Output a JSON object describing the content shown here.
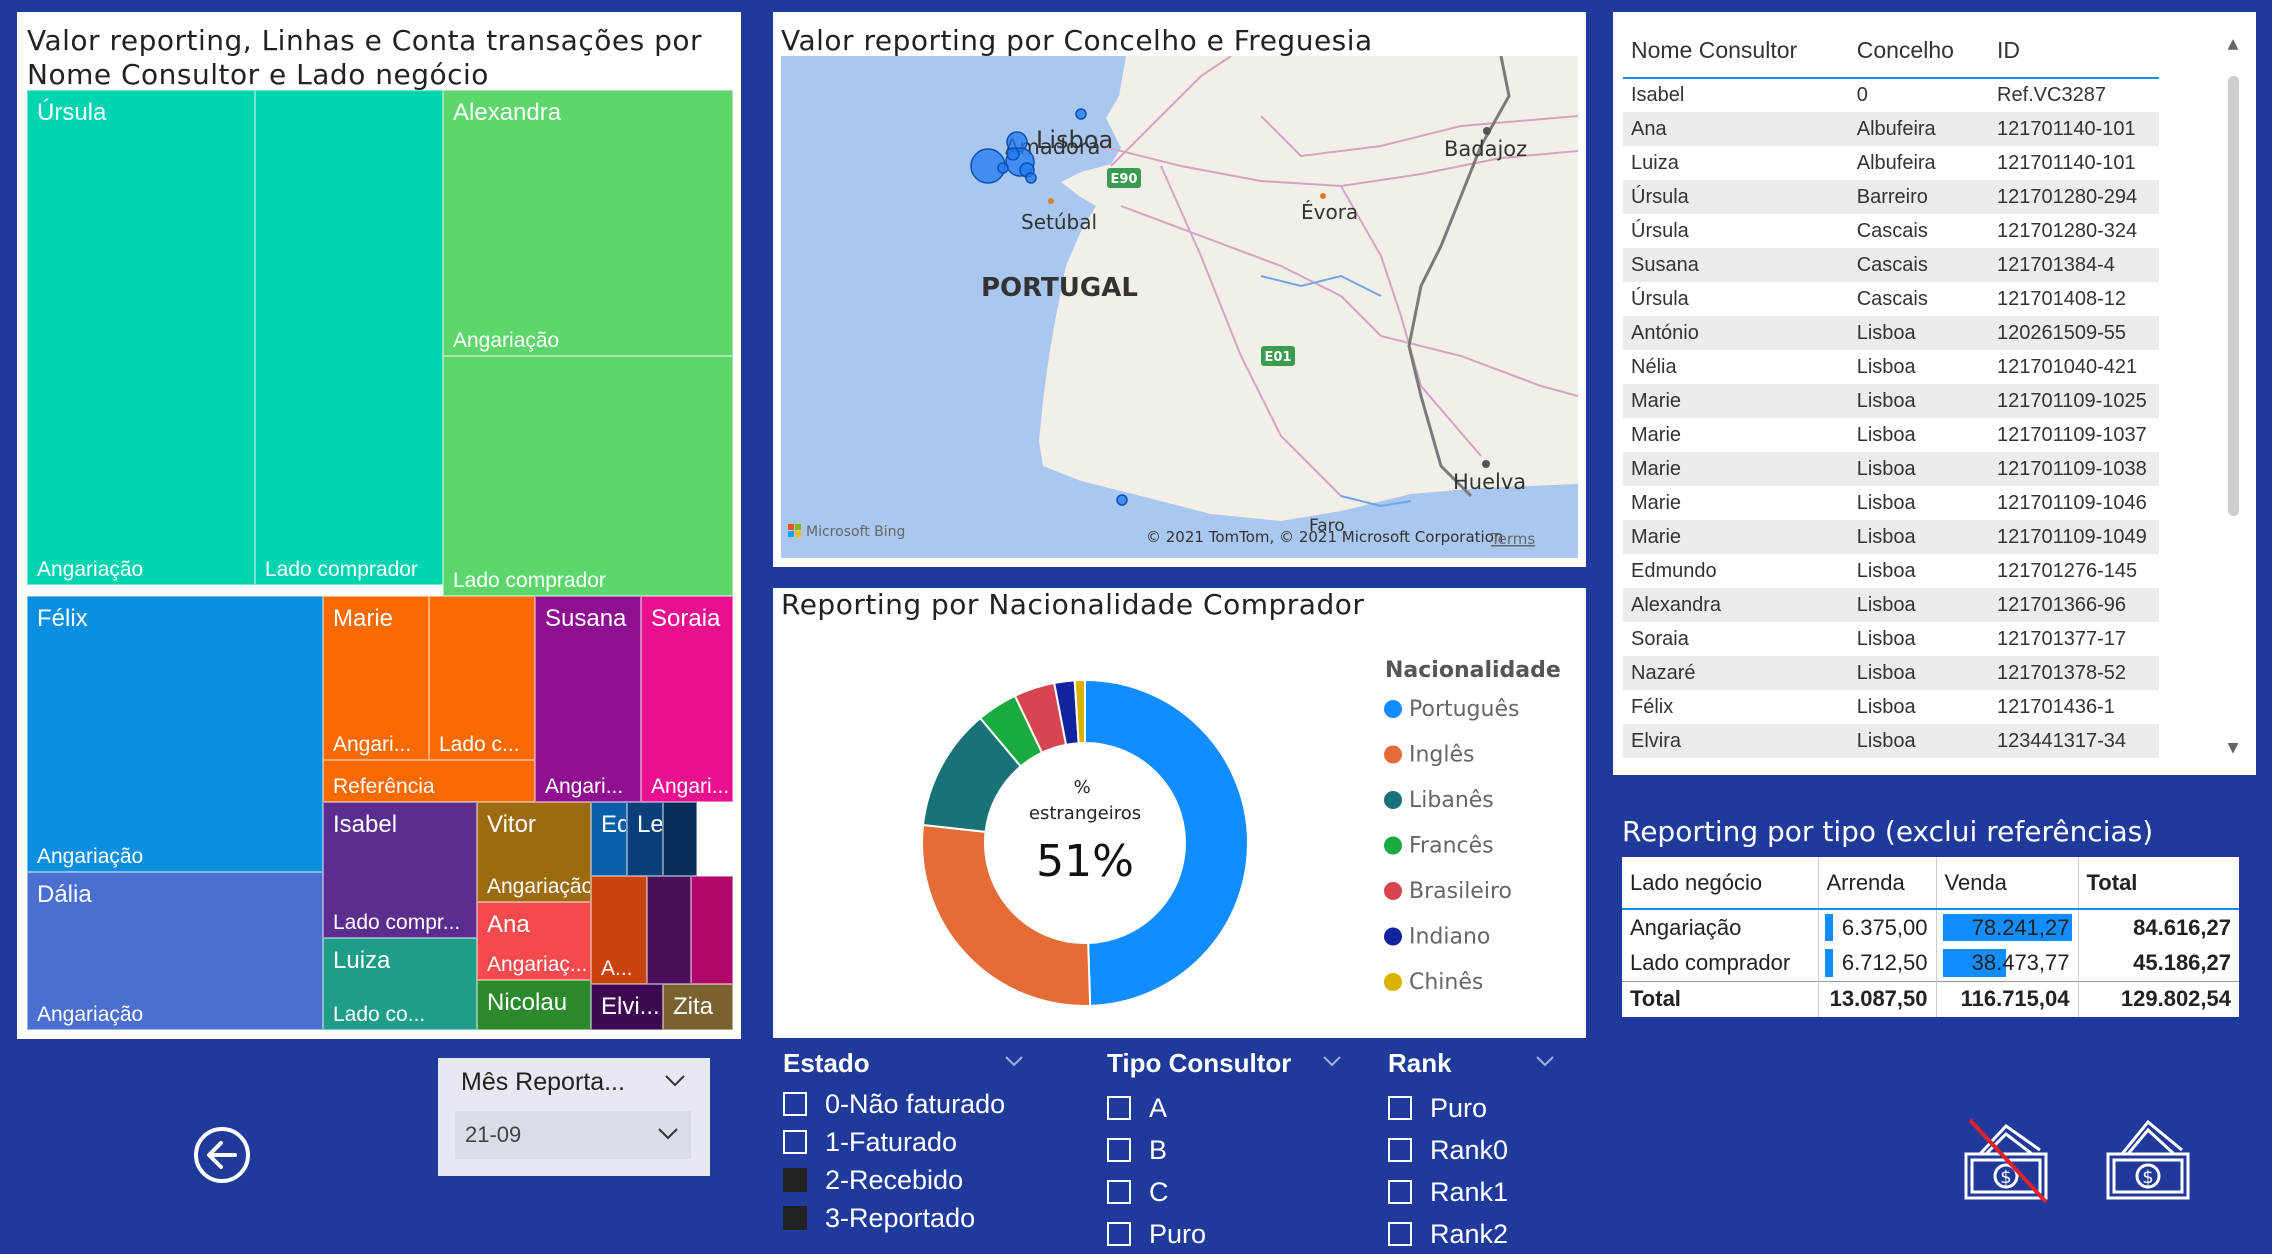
{
  "treemap": {
    "title_line1": "Valor reporting, Linhas e Conta transações por",
    "title_line2": "Nome Consultor e Lado negócio",
    "tiles": [
      {
        "name": "Úrsula",
        "label": "Angariação",
        "color": "#00d5b2"
      },
      {
        "name": "",
        "label": "Lado comprador",
        "color": "#00d5b2"
      },
      {
        "name": "Alexandra",
        "label": "Angariação",
        "color": "#5dd66b"
      },
      {
        "name": "",
        "label": "Lado comprador",
        "color": "#5dd66b"
      },
      {
        "name": "Félix",
        "label": "Angariação",
        "color": "#0a8fe0"
      },
      {
        "name": "Dália",
        "label": "Angariação",
        "color": "#4a6fd0"
      },
      {
        "name": "Marie",
        "label": "Angari...",
        "color": "#fa6a00"
      },
      {
        "name": "",
        "label": "Lado c...",
        "color": "#fa6a00"
      },
      {
        "name": "",
        "label": "Referência",
        "color": "#fa6a00"
      },
      {
        "name": "Susana",
        "label": "Angari...",
        "color": "#8e0f8f"
      },
      {
        "name": "Soraia",
        "label": "Angari...",
        "color": "#ea0f8f"
      },
      {
        "name": "Isabel",
        "label": "Lado compr...",
        "color": "#5b2d8e"
      },
      {
        "name": "Vitor",
        "label": "Angariação",
        "color": "#9c6b10"
      },
      {
        "name": "Ana",
        "label": "Angariaç...",
        "color": "#f44a4e"
      },
      {
        "name": "Luiza",
        "label": "Lado co...",
        "color": "#1f9d88"
      },
      {
        "name": "Nicolau",
        "label": "",
        "color": "#2c8a2c"
      },
      {
        "name": "Ed...",
        "label": "",
        "color": "#0a5fab"
      },
      {
        "name": "Le...",
        "label": "",
        "color": "#0a3f7a"
      },
      {
        "name": "",
        "label": "",
        "color": "#062c59"
      },
      {
        "name": "",
        "label": "A...",
        "color": "#c8440c"
      },
      {
        "name": "",
        "label": "",
        "color": "#4a0f5a"
      },
      {
        "name": "",
        "label": "",
        "color": "#b0086a"
      },
      {
        "name": "Elvi...",
        "label": "",
        "color": "#3d0a52"
      },
      {
        "name": "Zita",
        "label": "",
        "color": "#7a6230"
      }
    ]
  },
  "map": {
    "title": "Valor reporting por Concelho e Freguesia",
    "labels": {
      "amadora": "Amadora",
      "lisboa": "Lisboa",
      "setubal": "Setúbal",
      "evora": "Évora",
      "badajoz": "Badajoz",
      "portugal": "PORTUGAL",
      "huelva": "Huelva",
      "faro": "Faro",
      "e90": "E90",
      "e01": "E01"
    },
    "bing": "Microsoft Bing",
    "copyright": "© 2021 TomTom, © 2021 Microsoft Corporation",
    "terms": "Terms"
  },
  "table": {
    "headers": [
      "Nome Consultor",
      "Concelho",
      "ID"
    ],
    "rows": [
      [
        "Isabel",
        "0",
        "Ref.VC3287"
      ],
      [
        "Ana",
        "Albufeira",
        "121701140-101"
      ],
      [
        "Luiza",
        "Albufeira",
        "121701140-101"
      ],
      [
        "Úrsula",
        "Barreiro",
        "121701280-294"
      ],
      [
        "Úrsula",
        "Cascais",
        "121701280-324"
      ],
      [
        "Susana",
        "Cascais",
        "121701384-4"
      ],
      [
        "Úrsula",
        "Cascais",
        "121701408-12"
      ],
      [
        "António",
        "Lisboa",
        "120261509-55"
      ],
      [
        "Nélia",
        "Lisboa",
        "121701040-421"
      ],
      [
        "Marie",
        "Lisboa",
        "121701109-1025"
      ],
      [
        "Marie",
        "Lisboa",
        "121701109-1037"
      ],
      [
        "Marie",
        "Lisboa",
        "121701109-1038"
      ],
      [
        "Marie",
        "Lisboa",
        "121701109-1046"
      ],
      [
        "Marie",
        "Lisboa",
        "121701109-1049"
      ],
      [
        "Edmundo",
        "Lisboa",
        "121701276-145"
      ],
      [
        "Alexandra",
        "Lisboa",
        "121701366-96"
      ],
      [
        "Soraia",
        "Lisboa",
        "121701377-17"
      ],
      [
        "Nazaré",
        "Lisboa",
        "121701378-52"
      ],
      [
        "Félix",
        "Lisboa",
        "121701436-1"
      ],
      [
        "Elvira",
        "Lisboa",
        "123441317-34"
      ]
    ]
  },
  "donut": {
    "title": "Reporting por Nacionalidade Comprador",
    "center_label": "% estrangeiros",
    "center_value": "51%",
    "legend_title": "Nacionalidade"
  },
  "chart_data": {
    "type": "pie",
    "title": "Reporting por Nacionalidade Comprador",
    "categories": [
      "Português",
      "Inglês",
      "Libanês",
      "Francês",
      "Brasileiro",
      "Indiano",
      "Chinês"
    ],
    "values": [
      49,
      27,
      12,
      4,
      4,
      2,
      1
    ],
    "colors": [
      "#118dff",
      "#e66c37",
      "#197278",
      "#1aab40",
      "#d64550",
      "#12239e",
      "#d9b300"
    ]
  },
  "matrix": {
    "title": "Reporting por tipo (exclui referências)",
    "headers": [
      "Lado negócio",
      "Arrenda",
      "Venda",
      "Total"
    ],
    "rows": [
      {
        "label": "Angariação",
        "arrenda": "6.375,00",
        "venda": "78.241,27",
        "total": "84.616,27",
        "arrenda_frac": 0.08,
        "venda_frac": 1.0
      },
      {
        "label": "Lado comprador",
        "arrenda": "6.712,50",
        "venda": "38.473,77",
        "total": "45.186,27",
        "arrenda_frac": 0.08,
        "venda_frac": 0.49
      }
    ],
    "total": {
      "label": "Total",
      "arrenda": "13.087,50",
      "venda": "116.715,04",
      "total": "129.802,54"
    }
  },
  "slicers": {
    "estado": {
      "title": "Estado",
      "options": [
        {
          "label": "0-Não faturado",
          "checked": false
        },
        {
          "label": "1-Faturado",
          "checked": false
        },
        {
          "label": "2-Recebido",
          "checked": true
        },
        {
          "label": "3-Reportado",
          "checked": true
        }
      ]
    },
    "tipo": {
      "title": "Tipo Consultor",
      "options": [
        {
          "label": "A",
          "checked": false
        },
        {
          "label": "B",
          "checked": false
        },
        {
          "label": "C",
          "checked": false
        },
        {
          "label": "Puro",
          "checked": false
        }
      ]
    },
    "rank": {
      "title": "Rank",
      "options": [
        {
          "label": "Puro",
          "checked": false
        },
        {
          "label": "Rank0",
          "checked": false
        },
        {
          "label": "Rank1",
          "checked": false
        },
        {
          "label": "Rank2",
          "checked": false
        }
      ]
    }
  },
  "mes": {
    "title": "Mês Reporta...",
    "value": "21-09"
  }
}
